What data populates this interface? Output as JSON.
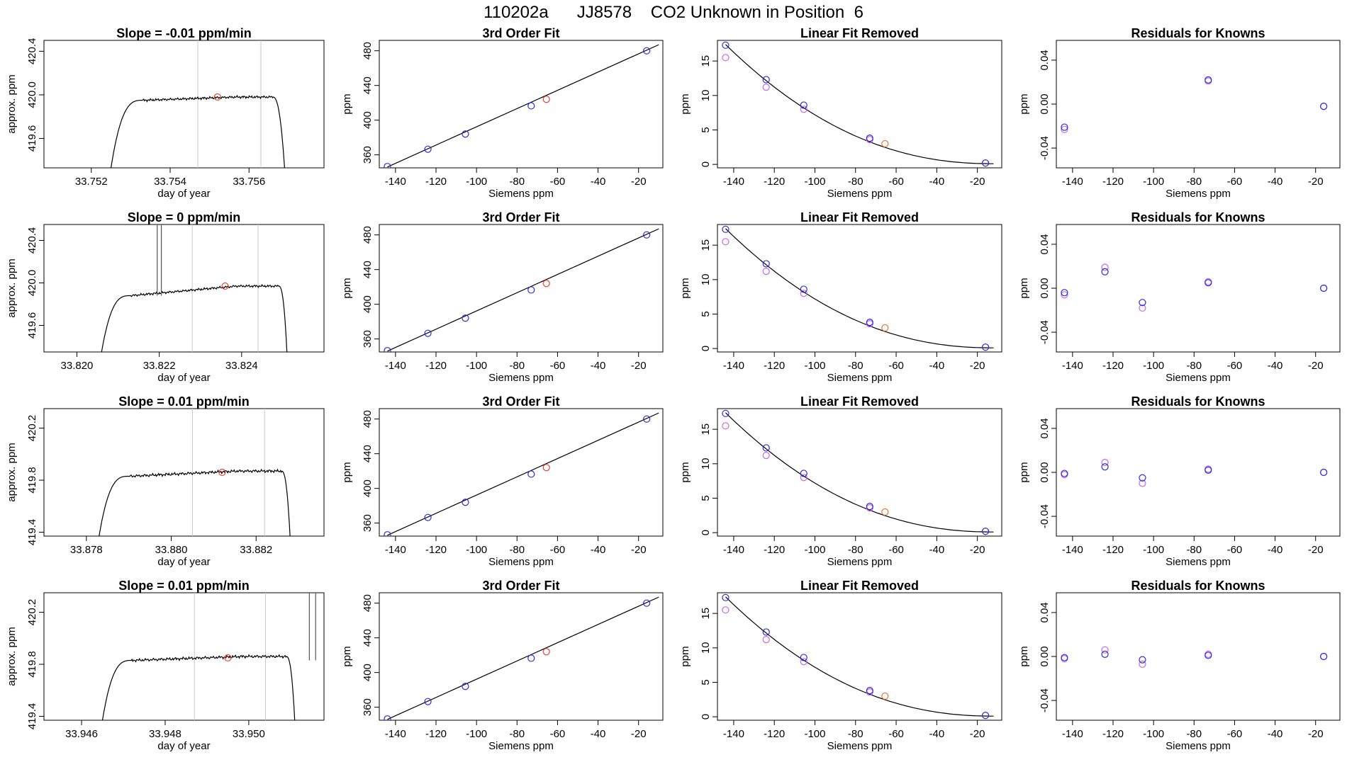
{
  "figure_title": "110202a      JJ8578    CO2 Unknown in Position  6",
  "colors": {
    "line": "#000000",
    "known": "#2b2bd9",
    "unknown": "#e8443a",
    "unknown_overlap": "#e8752a",
    "alt": "#c867e8",
    "vline": "#c8c8c8"
  },
  "chart_data": [
    {
      "panel": "r1-ts",
      "type": "line",
      "title": "Slope =  -0.01  ppm/min",
      "xlabel": "day of year",
      "ylabel": "approx. ppm",
      "xlim": [
        33.7508,
        33.7579
      ],
      "ylim": [
        419.33,
        420.5
      ],
      "xticks": [
        "33.752",
        "33.754",
        "33.756"
      ],
      "xtick_values": [
        33.752,
        33.754,
        33.756
      ],
      "yticks": [
        "419.6",
        "420.0",
        "420.4"
      ],
      "ytick_values": [
        419.6,
        420.0,
        420.4
      ],
      "series": {
        "t0": 33.7525,
        "t_rise_end": 33.7533,
        "t_end": 33.7566,
        "t_drop": 33.7569,
        "start": 419.33,
        "base": 419.95,
        "plateau": 419.98,
        "wiggle": 0.012
      },
      "spikes": [],
      "vlines": [
        33.7547,
        33.7563
      ],
      "unknown_point": [
        33.7552,
        419.98
      ]
    },
    {
      "panel": "r2-ts",
      "type": "line",
      "title": "Slope =  0  ppm/min",
      "xlabel": "day of year",
      "ylabel": "approx. ppm",
      "xlim": [
        33.8192,
        33.826
      ],
      "ylim": [
        419.35,
        420.55
      ],
      "xticks": [
        "33.820",
        "33.822",
        "33.824"
      ],
      "xtick_values": [
        33.82,
        33.822,
        33.824
      ],
      "yticks": [
        "419.6",
        "420.0",
        "420.4"
      ],
      "ytick_values": [
        419.6,
        420.0,
        420.4
      ],
      "series": {
        "t0": 33.8206,
        "t_rise_end": 33.8213,
        "t_end": 33.8249,
        "t_drop": 33.8251,
        "start": 419.35,
        "base": 419.88,
        "plateau": 419.97,
        "wiggle": 0.012
      },
      "spikes": [
        [
          33.82195,
          33.82205,
          420.55
        ]
      ],
      "vlines": [
        33.8228,
        33.8244
      ],
      "unknown_point": [
        33.8236,
        419.97
      ]
    },
    {
      "panel": "r3-ts",
      "type": "line",
      "title": "Slope =  0.01  ppm/min",
      "xlabel": "day of year",
      "ylabel": "approx. ppm",
      "xlim": [
        33.877,
        33.8836
      ],
      "ylim": [
        419.37,
        420.35
      ],
      "xticks": [
        "33.878",
        "33.880",
        "33.882"
      ],
      "xtick_values": [
        33.878,
        33.88,
        33.882
      ],
      "yticks": [
        "419.4",
        "419.8",
        "420.2"
      ],
      "ytick_values": [
        419.4,
        419.8,
        420.2
      ],
      "series": {
        "t0": 33.8783,
        "t_rise_end": 33.879,
        "t_end": 33.8826,
        "t_drop": 33.8828,
        "start": 419.37,
        "base": 419.83,
        "plateau": 419.87,
        "wiggle": 0.012
      },
      "spikes": [],
      "vlines": [
        33.8805,
        33.8822
      ],
      "unknown_point": [
        33.8812,
        419.86
      ]
    },
    {
      "panel": "r4-ts",
      "type": "line",
      "title": "Slope =  0.01  ppm/min",
      "xlabel": "day of year",
      "ylabel": "approx. ppm",
      "xlim": [
        33.9451,
        33.9518
      ],
      "ylim": [
        419.37,
        420.35
      ],
      "xticks": [
        "33.946",
        "33.948",
        "33.950"
      ],
      "xtick_values": [
        33.946,
        33.948,
        33.95
      ],
      "yticks": [
        "419.4",
        "419.8",
        "420.2"
      ],
      "ytick_values": [
        419.4,
        419.8,
        420.2
      ],
      "series": {
        "t0": 33.9465,
        "t_rise_end": 33.9472,
        "t_end": 33.9509,
        "t_drop": 33.9511,
        "start": 419.37,
        "base": 419.83,
        "plateau": 419.86,
        "wiggle": 0.012
      },
      "spikes": [
        [
          33.95145,
          33.9516,
          420.35
        ]
      ],
      "vlines": [
        33.9487,
        33.9504
      ],
      "unknown_point": [
        33.9495,
        419.85
      ]
    },
    {
      "panel": "fit",
      "type": "scatter",
      "title": "3rd Order Fit",
      "xlabel": "Siemens ppm",
      "ylabel": "ppm",
      "xlim": [
        -148,
        -8
      ],
      "ylim": [
        345,
        492
      ],
      "xticks": [
        "-140",
        "-120",
        "-100",
        "-80",
        "-60",
        "-40",
        "-20"
      ],
      "xtick_values": [
        -140,
        -120,
        -100,
        -80,
        -60,
        -40,
        -20
      ],
      "yticks": [
        "360",
        "400",
        "440",
        "480"
      ],
      "ytick_values": [
        360,
        400,
        440,
        480
      ],
      "fit_line": {
        "x0": -144,
        "y0": 346,
        "x1": -10,
        "y1": 487
      },
      "known_points": [
        [
          -144,
          346.5
        ],
        [
          -124,
          366.5
        ],
        [
          -105.5,
          384
        ],
        [
          -73,
          416.5
        ],
        [
          -16,
          480
        ]
      ],
      "unknown_point": [
        -65.5,
        424
      ]
    },
    {
      "panel": "lin",
      "type": "scatter",
      "title": "Linear Fit Removed",
      "xlabel": "Siemens ppm",
      "ylabel": "ppm",
      "xlim": [
        -148,
        -8
      ],
      "ylim": [
        -0.5,
        18
      ],
      "xticks": [
        "-140",
        "-120",
        "-100",
        "-80",
        "-60",
        "-40",
        "-20"
      ],
      "xtick_values": [
        -140,
        -120,
        -100,
        -80,
        -60,
        -40,
        -20
      ],
      "yticks": [
        "0",
        "5",
        "10",
        "15"
      ],
      "ytick_values": [
        0,
        5,
        10,
        15
      ],
      "curve": {
        "x0": -144,
        "x1": -12,
        "y0": 17.4,
        "y1": 0.1
      },
      "known_points": [
        [
          -144,
          17.3
        ],
        [
          -124,
          12.3
        ],
        [
          -105.5,
          8.6
        ],
        [
          -73,
          3.8
        ],
        [
          -16,
          0.2
        ]
      ],
      "alt_points": [
        [
          -144,
          15.5
        ],
        [
          -124,
          11.2
        ],
        [
          -105.5,
          8.0
        ],
        [
          -73,
          3.6
        ],
        [
          -16,
          0.2
        ]
      ],
      "unknown_point": [
        -65.5,
        3.0
      ]
    },
    {
      "panel": "r1-res",
      "type": "scatter",
      "title": "Residuals for Knowns",
      "xlabel": "Siemens ppm",
      "ylabel": "ppm",
      "xlim": [
        -148,
        -8
      ],
      "ylim": [
        -0.058,
        0.058
      ],
      "xticks": [
        "-140",
        "-120",
        "-100",
        "-80",
        "-60",
        "-40",
        "-20"
      ],
      "xtick_values": [
        -140,
        -120,
        -100,
        -80,
        -60,
        -40,
        -20
      ],
      "yticks": [
        "-0.04",
        "0.00",
        "0.04"
      ],
      "ytick_values": [
        -0.04,
        0.0,
        0.04
      ],
      "known_points": [
        [
          -144,
          -0.021
        ],
        [
          -73,
          0.022
        ],
        [
          -16,
          -0.002
        ]
      ],
      "alt_points": [
        [
          -144,
          -0.023
        ],
        [
          -73,
          0.021
        ],
        [
          -16,
          -0.002
        ]
      ]
    },
    {
      "panel": "r2-res",
      "type": "scatter",
      "title": "Residuals for Knowns",
      "xlabel": "Siemens ppm",
      "ylabel": "ppm",
      "xlim": [
        -148,
        -8
      ],
      "ylim": [
        -0.058,
        0.058
      ],
      "xticks": [
        "-140",
        "-120",
        "-100",
        "-80",
        "-60",
        "-40",
        "-20"
      ],
      "xtick_values": [
        -140,
        -120,
        -100,
        -80,
        -60,
        -40,
        -20
      ],
      "yticks": [
        "-0.04",
        "0.00",
        "0.04"
      ],
      "ytick_values": [
        -0.04,
        0.0,
        0.04
      ],
      "known_points": [
        [
          -144,
          -0.004
        ],
        [
          -124,
          0.015
        ],
        [
          -105.5,
          -0.013
        ],
        [
          -73,
          0.005
        ],
        [
          -16,
          0.0
        ]
      ],
      "alt_points": [
        [
          -144,
          -0.006
        ],
        [
          -124,
          0.019
        ],
        [
          -105.5,
          -0.018
        ],
        [
          -73,
          0.006
        ],
        [
          -16,
          0.0
        ]
      ]
    },
    {
      "panel": "r3-res",
      "type": "scatter",
      "title": "Residuals for Knowns",
      "xlabel": "Siemens ppm",
      "ylabel": "ppm",
      "xlim": [
        -148,
        -8
      ],
      "ylim": [
        -0.058,
        0.058
      ],
      "xticks": [
        "-140",
        "-120",
        "-100",
        "-80",
        "-60",
        "-40",
        "-20"
      ],
      "xtick_values": [
        -140,
        -120,
        -100,
        -80,
        -60,
        -40,
        -20
      ],
      "yticks": [
        "-0.04",
        "0.00",
        "0.04"
      ],
      "ytick_values": [
        -0.04,
        0.0,
        0.04
      ],
      "known_points": [
        [
          -144,
          -0.001
        ],
        [
          -124,
          0.005
        ],
        [
          -105.5,
          -0.005
        ],
        [
          -73,
          0.002
        ],
        [
          -16,
          0.0
        ]
      ],
      "alt_points": [
        [
          -144,
          -0.002
        ],
        [
          -124,
          0.009
        ],
        [
          -105.5,
          -0.01
        ],
        [
          -73,
          0.003
        ],
        [
          -16,
          0.0
        ]
      ]
    },
    {
      "panel": "r4-res",
      "type": "scatter",
      "title": "Residuals for Knowns",
      "xlabel": "Siemens ppm",
      "ylabel": "ppm",
      "xlim": [
        -148,
        -8
      ],
      "ylim": [
        -0.058,
        0.058
      ],
      "xticks": [
        "-140",
        "-120",
        "-100",
        "-80",
        "-60",
        "-40",
        "-20"
      ],
      "xtick_values": [
        -140,
        -120,
        -100,
        -80,
        -60,
        -40,
        -20
      ],
      "yticks": [
        "-0.04",
        "0.00",
        "0.04"
      ],
      "ytick_values": [
        -0.04,
        0.0,
        0.04
      ],
      "known_points": [
        [
          -144,
          -0.001
        ],
        [
          -124,
          0.002
        ],
        [
          -105.5,
          -0.003
        ],
        [
          -73,
          0.001
        ],
        [
          -16,
          0.0
        ]
      ],
      "alt_points": [
        [
          -144,
          -0.002
        ],
        [
          -124,
          0.006
        ],
        [
          -105.5,
          -0.007
        ],
        [
          -73,
          0.002
        ],
        [
          -16,
          0.0
        ]
      ]
    }
  ]
}
